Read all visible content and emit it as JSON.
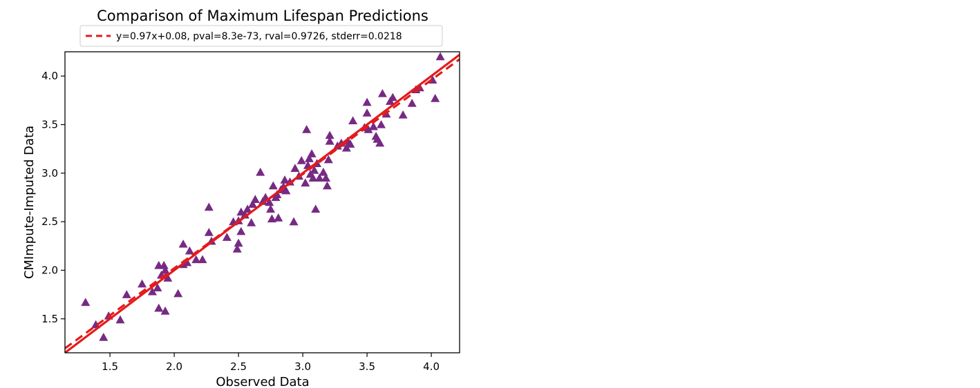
{
  "chart_data": {
    "type": "scatter",
    "title": "Comparison of Maximum Lifespan Predictions",
    "xlabel": "Observed Data",
    "ylabel": "CMImpute-Imputed Data",
    "xlim": [
      1.15,
      4.22
    ],
    "ylim": [
      1.15,
      4.25
    ],
    "xticks": [
      1.5,
      2.0,
      2.5,
      3.0,
      3.5,
      4.0
    ],
    "xtick_labels": [
      "1.5",
      "2.0",
      "2.5",
      "3.0",
      "3.5",
      "4.0"
    ],
    "yticks": [
      1.5,
      2.0,
      2.5,
      3.0,
      3.5,
      4.0
    ],
    "ytick_labels": [
      "1.5",
      "2.0",
      "2.5",
      "3.0",
      "3.5",
      "4.0"
    ],
    "grid": false,
    "legend": {
      "position": "top-center",
      "entries": [
        "y=0.97x+0.08, pval=8.3e-73, rval=0.9726, stderr=0.0218"
      ]
    },
    "colors": {
      "points": "#762a83",
      "fit_line": "#e41a1c",
      "identity_line": "#e41a1c"
    },
    "fit_line": {
      "slope": 0.97,
      "intercept": 0.08,
      "style": "dashed"
    },
    "identity_line": {
      "slope": 1.0,
      "intercept": 0.0,
      "style": "solid"
    },
    "series": [
      {
        "name": "points",
        "marker": "triangle",
        "points": [
          [
            1.31,
            1.67
          ],
          [
            1.39,
            1.44
          ],
          [
            1.45,
            1.31
          ],
          [
            1.49,
            1.53
          ],
          [
            1.58,
            1.49
          ],
          [
            1.63,
            1.75
          ],
          [
            1.75,
            1.86
          ],
          [
            1.83,
            1.78
          ],
          [
            1.87,
            1.82
          ],
          [
            1.88,
            1.61
          ],
          [
            1.88,
            2.05
          ],
          [
            1.9,
            1.95
          ],
          [
            1.92,
            2.05
          ],
          [
            1.93,
            1.58
          ],
          [
            1.93,
            2.0
          ],
          [
            1.95,
            1.92
          ],
          [
            2.03,
            1.76
          ],
          [
            2.07,
            2.06
          ],
          [
            2.07,
            2.27
          ],
          [
            2.1,
            2.08
          ],
          [
            2.12,
            2.2
          ],
          [
            2.17,
            2.11
          ],
          [
            2.22,
            2.11
          ],
          [
            2.27,
            2.65
          ],
          [
            2.27,
            2.39
          ],
          [
            2.29,
            2.3
          ],
          [
            2.41,
            2.34
          ],
          [
            2.46,
            2.5
          ],
          [
            2.49,
            2.22
          ],
          [
            2.5,
            2.28
          ],
          [
            2.5,
            2.51
          ],
          [
            2.52,
            2.4
          ],
          [
            2.52,
            2.6
          ],
          [
            2.55,
            2.57
          ],
          [
            2.57,
            2.63
          ],
          [
            2.6,
            2.49
          ],
          [
            2.61,
            2.68
          ],
          [
            2.63,
            2.73
          ],
          [
            2.67,
            3.01
          ],
          [
            2.69,
            2.71
          ],
          [
            2.71,
            2.75
          ],
          [
            2.74,
            2.7
          ],
          [
            2.75,
            2.63
          ],
          [
            2.76,
            2.53
          ],
          [
            2.77,
            2.87
          ],
          [
            2.79,
            2.75
          ],
          [
            2.8,
            2.78
          ],
          [
            2.81,
            2.54
          ],
          [
            2.83,
            2.83
          ],
          [
            2.85,
            2.86
          ],
          [
            2.86,
            2.93
          ],
          [
            2.87,
            2.82
          ],
          [
            2.9,
            2.91
          ],
          [
            2.93,
            2.5
          ],
          [
            2.94,
            3.05
          ],
          [
            2.97,
            2.97
          ],
          [
            2.99,
            3.13
          ],
          [
            3.02,
            2.9
          ],
          [
            3.03,
            3.45
          ],
          [
            3.04,
            3.08
          ],
          [
            3.05,
            3.15
          ],
          [
            3.06,
            2.99
          ],
          [
            3.07,
            3.2
          ],
          [
            3.08,
            2.95
          ],
          [
            3.09,
            3.03
          ],
          [
            3.1,
            2.63
          ],
          [
            3.11,
            3.1
          ],
          [
            3.13,
            2.95
          ],
          [
            3.16,
            3.01
          ],
          [
            3.18,
            2.95
          ],
          [
            3.19,
            2.87
          ],
          [
            3.2,
            3.14
          ],
          [
            3.21,
            3.33
          ],
          [
            3.21,
            3.39
          ],
          [
            3.27,
            3.28
          ],
          [
            3.3,
            3.31
          ],
          [
            3.34,
            3.26
          ],
          [
            3.35,
            3.33
          ],
          [
            3.37,
            3.3
          ],
          [
            3.39,
            3.54
          ],
          [
            3.48,
            3.47
          ],
          [
            3.5,
            3.73
          ],
          [
            3.5,
            3.62
          ],
          [
            3.51,
            3.45
          ],
          [
            3.55,
            3.48
          ],
          [
            3.57,
            3.38
          ],
          [
            3.58,
            3.35
          ],
          [
            3.6,
            3.31
          ],
          [
            3.61,
            3.5
          ],
          [
            3.62,
            3.82
          ],
          [
            3.65,
            3.61
          ],
          [
            3.68,
            3.74
          ],
          [
            3.7,
            3.78
          ],
          [
            3.78,
            3.6
          ],
          [
            3.85,
            3.72
          ],
          [
            3.88,
            3.86
          ],
          [
            3.91,
            3.88
          ],
          [
            4.01,
            3.96
          ],
          [
            4.03,
            3.77
          ],
          [
            4.07,
            4.2
          ]
        ]
      }
    ]
  }
}
